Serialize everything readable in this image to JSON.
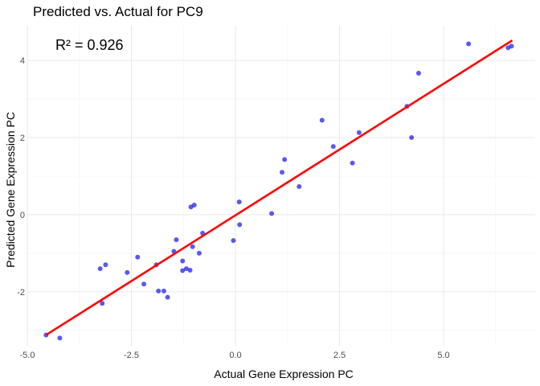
{
  "chart_data": {
    "type": "scatter",
    "title": "Predicted vs. Actual for PC9",
    "xlabel": "Actual Gene Expression PC",
    "ylabel": "Predicted Gene Expression PC",
    "annotation": "R² = 0.926",
    "xlim": [
      -5.0,
      7.2
    ],
    "ylim": [
      -3.4,
      4.9
    ],
    "x_ticks": [
      -5.0,
      -2.5,
      0.0,
      2.5,
      5.0
    ],
    "x_tick_labels": [
      "-5.0",
      "-2.5",
      "0.0",
      "2.5",
      "5.0"
    ],
    "y_ticks": [
      -2,
      0,
      2,
      4
    ],
    "y_tick_labels": [
      "-2",
      "0",
      "2",
      "4"
    ],
    "grid": true,
    "point_color": "#2222ee",
    "line_color": "#ff0000",
    "fit_line": {
      "x": [
        -4.55,
        6.65
      ],
      "y": [
        -3.12,
        4.52
      ]
    },
    "points": [
      {
        "x": -4.55,
        "y": -3.12
      },
      {
        "x": -4.22,
        "y": -3.2
      },
      {
        "x": -3.25,
        "y": -1.4
      },
      {
        "x": -3.12,
        "y": -1.3
      },
      {
        "x": -3.2,
        "y": -2.3
      },
      {
        "x": -2.6,
        "y": -1.5
      },
      {
        "x": -2.35,
        "y": -1.1
      },
      {
        "x": -2.2,
        "y": -1.8
      },
      {
        "x": -1.9,
        "y": -1.3
      },
      {
        "x": -1.85,
        "y": -1.98
      },
      {
        "x": -1.72,
        "y": -1.98
      },
      {
        "x": -1.63,
        "y": -2.14
      },
      {
        "x": -1.48,
        "y": -0.95
      },
      {
        "x": -1.42,
        "y": -0.65
      },
      {
        "x": -1.27,
        "y": -1.2
      },
      {
        "x": -1.27,
        "y": -1.45
      },
      {
        "x": -1.18,
        "y": -1.4
      },
      {
        "x": -1.09,
        "y": -1.44
      },
      {
        "x": -1.07,
        "y": 0.2
      },
      {
        "x": -0.99,
        "y": 0.25
      },
      {
        "x": -1.03,
        "y": -0.83
      },
      {
        "x": -0.87,
        "y": -1.0
      },
      {
        "x": -0.79,
        "y": -0.48
      },
      {
        "x": -0.05,
        "y": -0.67
      },
      {
        "x": 0.09,
        "y": 0.33
      },
      {
        "x": 0.1,
        "y": -0.26
      },
      {
        "x": 0.87,
        "y": 0.03
      },
      {
        "x": 1.12,
        "y": 1.1
      },
      {
        "x": 1.18,
        "y": 1.43
      },
      {
        "x": 1.53,
        "y": 0.73
      },
      {
        "x": 2.08,
        "y": 2.45
      },
      {
        "x": 2.35,
        "y": 1.77
      },
      {
        "x": 2.81,
        "y": 1.34
      },
      {
        "x": 2.97,
        "y": 2.13
      },
      {
        "x": 4.12,
        "y": 2.81
      },
      {
        "x": 4.23,
        "y": 2.0
      },
      {
        "x": 4.4,
        "y": 3.67
      },
      {
        "x": 5.6,
        "y": 4.43
      },
      {
        "x": 6.55,
        "y": 4.33
      },
      {
        "x": 6.63,
        "y": 4.37
      }
    ]
  }
}
